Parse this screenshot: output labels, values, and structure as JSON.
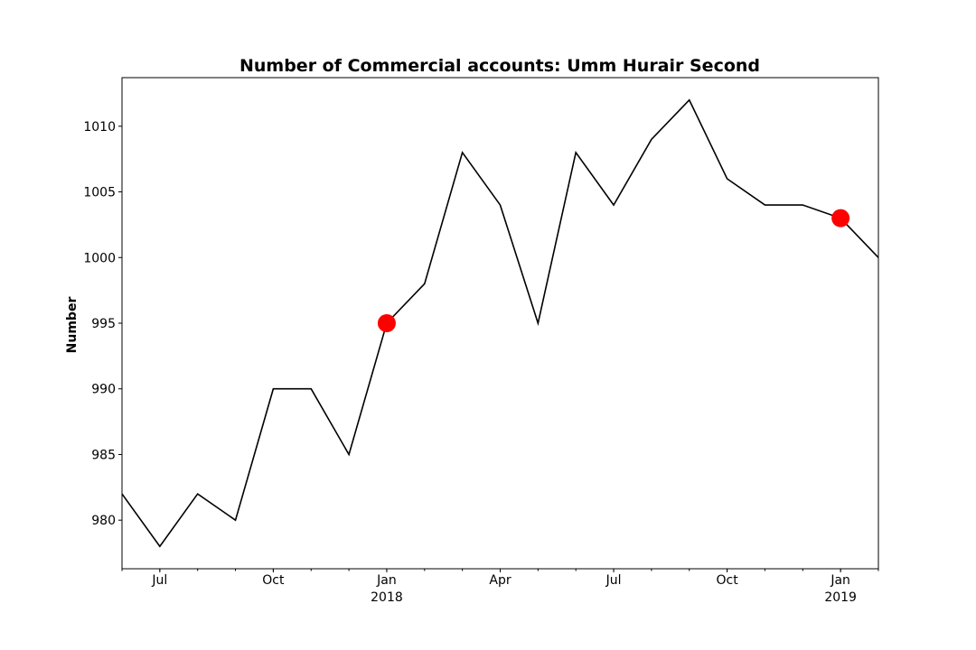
{
  "chart_data": {
    "type": "line",
    "title": "Number of Commercial accounts: Umm Hurair Second",
    "xlabel": "",
    "ylabel": "Number",
    "x": [
      "2017-06",
      "2017-07",
      "2017-08",
      "2017-09",
      "2017-10",
      "2017-11",
      "2017-12",
      "2018-01",
      "2018-02",
      "2018-03",
      "2018-04",
      "2018-05",
      "2018-06",
      "2018-07",
      "2018-08",
      "2018-09",
      "2018-10",
      "2018-11",
      "2018-12",
      "2019-01",
      "2019-02"
    ],
    "values": [
      982,
      978,
      982,
      980,
      990,
      990,
      985,
      995,
      998,
      1008,
      1004,
      995,
      1008,
      1004,
      1009,
      1012,
      1006,
      1004,
      1004,
      1003,
      1000
    ],
    "xlim": [
      "2017-06",
      "2019-02"
    ],
    "ylim": [
      976.3,
      1013.7
    ],
    "yticks": [
      980,
      985,
      990,
      995,
      1000,
      1005,
      1010
    ],
    "xticks": [
      {
        "at": "2017-07",
        "label": "Jul",
        "sublabel": ""
      },
      {
        "at": "2017-10",
        "label": "Oct",
        "sublabel": ""
      },
      {
        "at": "2018-01",
        "label": "Jan",
        "sublabel": "2018"
      },
      {
        "at": "2018-04",
        "label": "Apr",
        "sublabel": ""
      },
      {
        "at": "2018-07",
        "label": "Jul",
        "sublabel": ""
      },
      {
        "at": "2018-10",
        "label": "Oct",
        "sublabel": ""
      },
      {
        "at": "2019-01",
        "label": "Jan",
        "sublabel": "2019"
      }
    ],
    "highlights": [
      {
        "x": "2018-01",
        "y": 995
      },
      {
        "x": "2019-01",
        "y": 1003
      }
    ],
    "line_color": "#000000",
    "highlight_color": "#ff0000",
    "grid": false,
    "legend": "none"
  }
}
